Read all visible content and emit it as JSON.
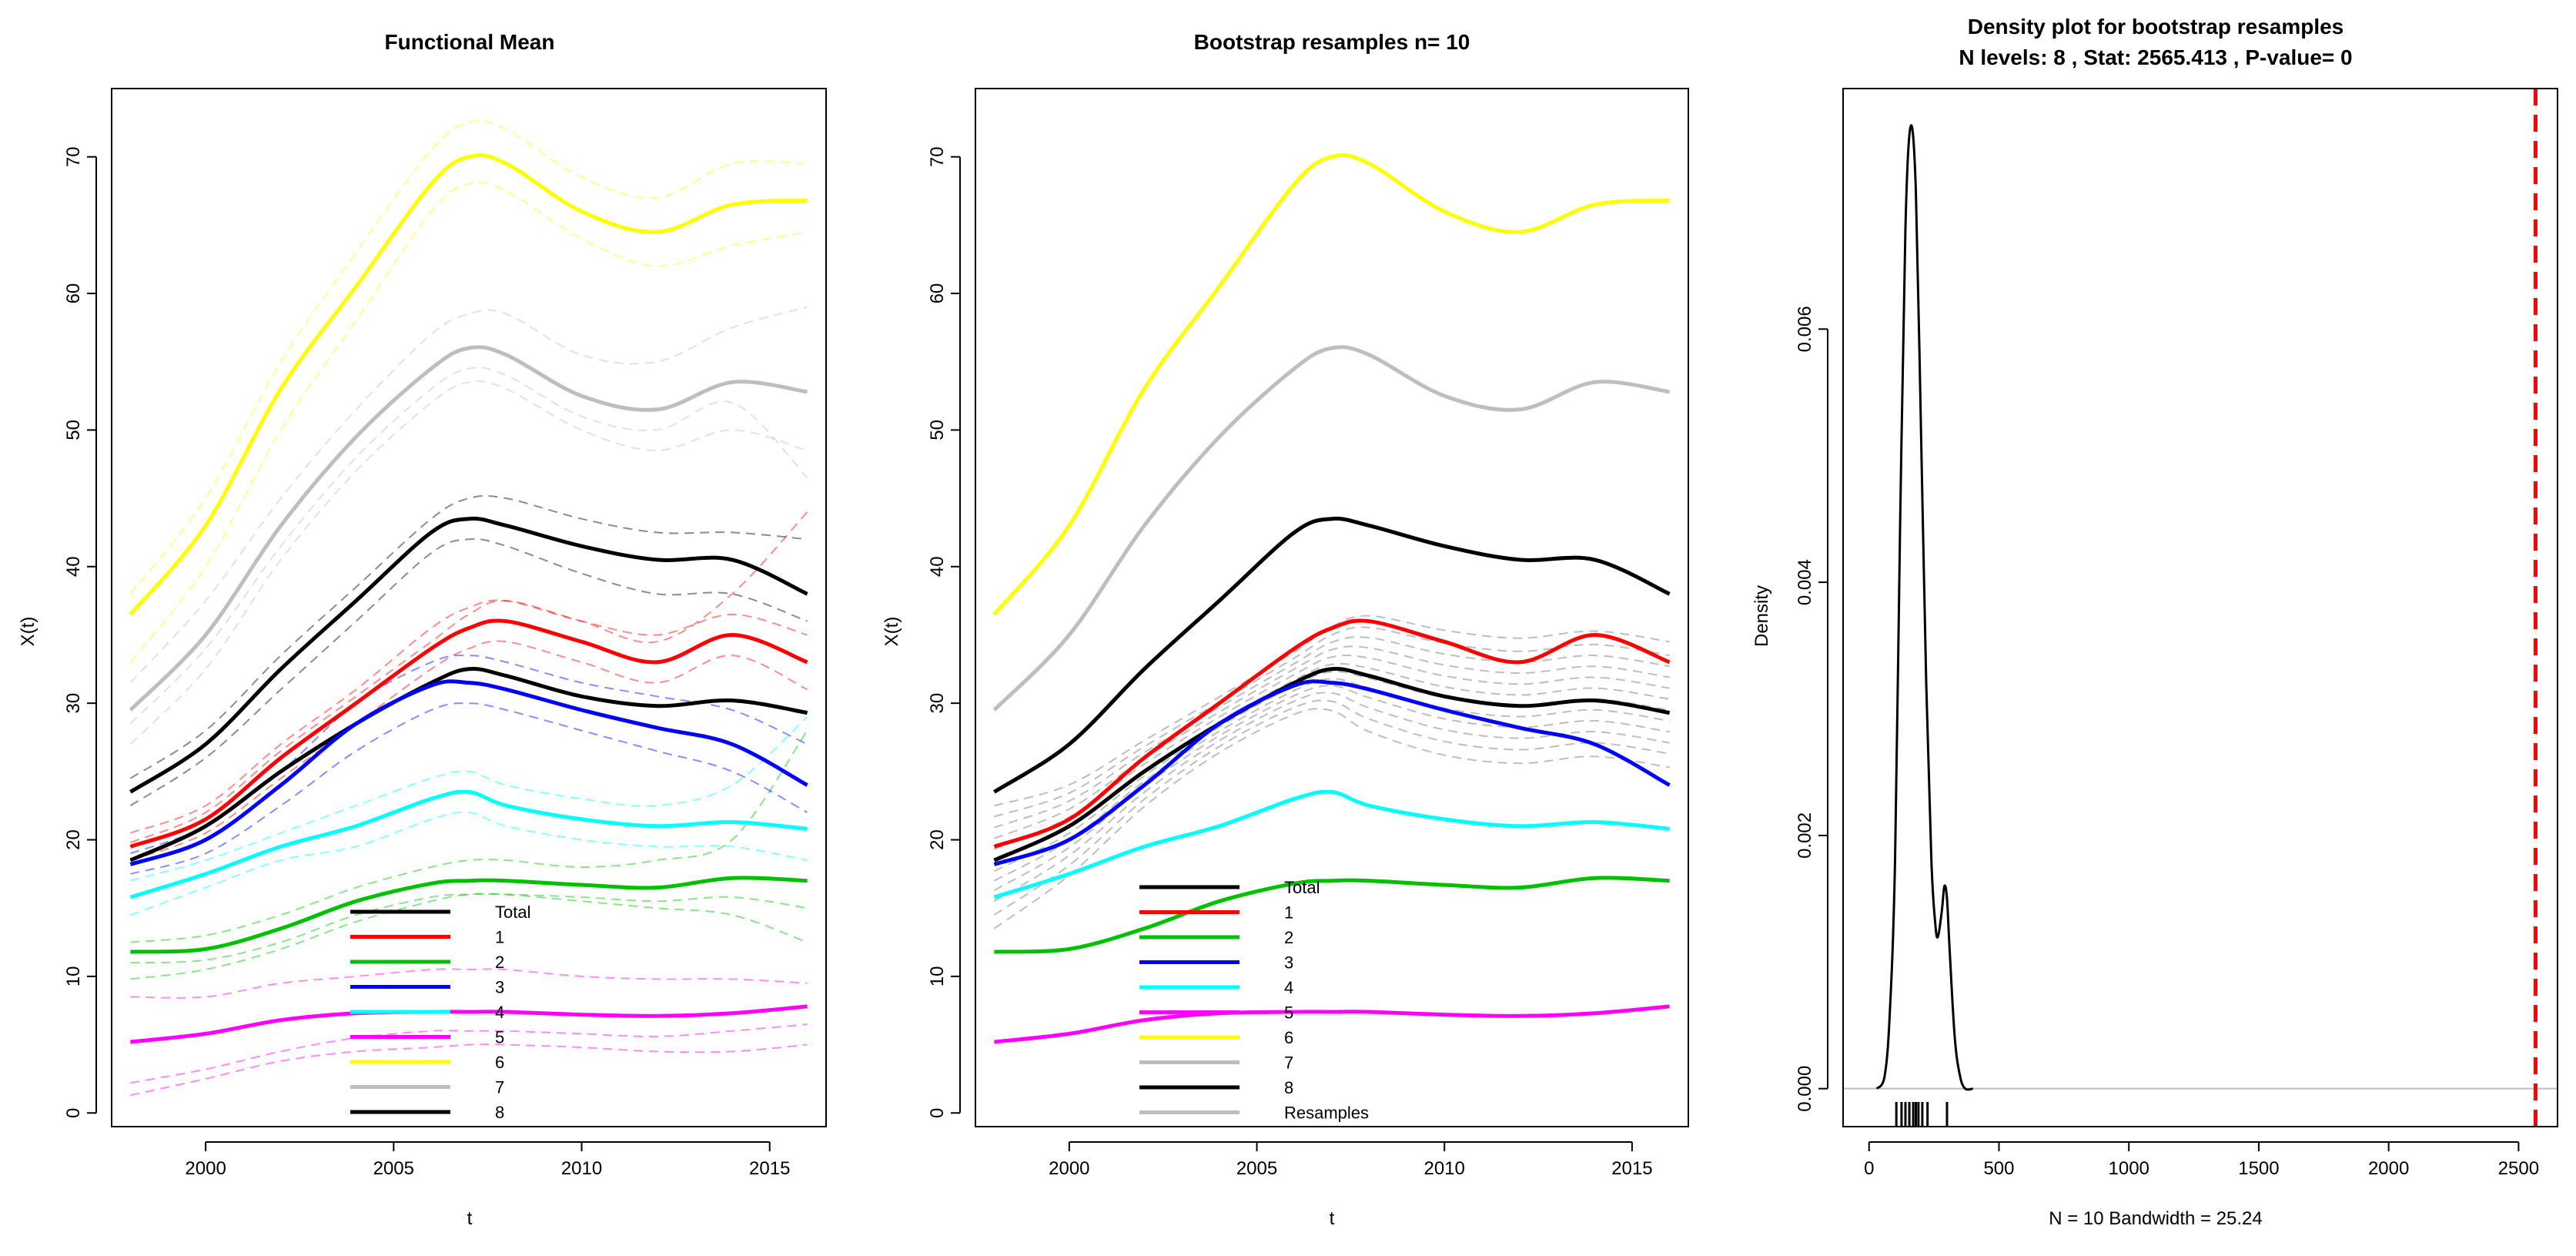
{
  "chart_data": [
    {
      "type": "line",
      "title": "Functional Mean",
      "xlabel": "t",
      "ylabel": "X(t)",
      "xlim": [
        1997.5,
        2016.5
      ],
      "ylim": [
        -1,
        75
      ],
      "xticks": [
        2000,
        2005,
        2010,
        2015
      ],
      "yticks": [
        0,
        10,
        20,
        30,
        40,
        50,
        60,
        70
      ],
      "legend": {
        "position": "bottom-center",
        "entries": [
          "Total",
          "1",
          "2",
          "3",
          "4",
          "5",
          "6",
          "7",
          "8"
        ]
      },
      "series": [
        {
          "name": "Total",
          "color": "#000000",
          "x": [
            1998,
            2000,
            2002,
            2004,
            2006,
            2007,
            2008,
            2010,
            2012,
            2014,
            2016
          ],
          "values": [
            18.5,
            21,
            25,
            28.5,
            31.5,
            32.5,
            32,
            30.5,
            29.8,
            30.2,
            29.3
          ]
        },
        {
          "name": "1",
          "color": "#ff0000",
          "x": [
            1998,
            2000,
            2002,
            2004,
            2006,
            2007,
            2008,
            2010,
            2012,
            2014,
            2016
          ],
          "values": [
            19.5,
            21.5,
            26,
            30,
            34,
            35.5,
            36,
            34.5,
            33,
            35,
            33
          ]
        },
        {
          "name": "2",
          "color": "#00c000",
          "x": [
            1998,
            2000,
            2002,
            2004,
            2006,
            2007,
            2008,
            2010,
            2012,
            2014,
            2016
          ],
          "values": [
            11.8,
            12,
            13.5,
            15.5,
            16.8,
            17,
            17,
            16.7,
            16.5,
            17.2,
            17
          ]
        },
        {
          "name": "3",
          "color": "#0000ff",
          "x": [
            1998,
            2000,
            2002,
            2004,
            2006,
            2007,
            2008,
            2010,
            2012,
            2014,
            2016
          ],
          "values": [
            18.2,
            20,
            24,
            28.5,
            31.3,
            31.5,
            31,
            29.5,
            28.2,
            27,
            24
          ]
        },
        {
          "name": "4",
          "color": "#00ffff",
          "x": [
            1998,
            2000,
            2002,
            2004,
            2006,
            2007,
            2008,
            2010,
            2012,
            2014,
            2016
          ],
          "values": [
            15.8,
            17.5,
            19.5,
            21,
            23,
            23.5,
            22.5,
            21.5,
            21,
            21.3,
            20.8
          ]
        },
        {
          "name": "5",
          "color": "#ff00ff",
          "x": [
            1998,
            2000,
            2002,
            2004,
            2006,
            2007,
            2008,
            2010,
            2012,
            2014,
            2016
          ],
          "values": [
            5.2,
            5.8,
            6.8,
            7.3,
            7.4,
            7.4,
            7.4,
            7.2,
            7.1,
            7.3,
            7.8
          ]
        },
        {
          "name": "6",
          "color": "#ffff00",
          "x": [
            1998,
            2000,
            2002,
            2004,
            2006,
            2007,
            2008,
            2010,
            2012,
            2014,
            2016
          ],
          "values": [
            36.5,
            43,
            53,
            60.5,
            68,
            70,
            69.5,
            66,
            64.5,
            66.5,
            66.8
          ]
        },
        {
          "name": "7",
          "color": "#bebebe",
          "x": [
            1998,
            2000,
            2002,
            2004,
            2006,
            2007,
            2008,
            2010,
            2012,
            2014,
            2016
          ],
          "values": [
            29.5,
            35,
            43,
            49.5,
            54.5,
            56,
            55.5,
            52.5,
            51.5,
            53.5,
            52.8
          ]
        },
        {
          "name": "8",
          "color": "#000000",
          "x": [
            1998,
            2000,
            2002,
            2004,
            2006,
            2007,
            2008,
            2010,
            2012,
            2014,
            2016
          ],
          "values": [
            23.5,
            27,
            32.5,
            37.5,
            42.5,
            43.5,
            43,
            41.5,
            40.5,
            40.5,
            38
          ]
        }
      ],
      "individual_curves": [
        {
          "group": "1",
          "color": "#ff0000",
          "values": [
            20.5,
            22.5,
            27,
            31,
            35.5,
            37,
            37.5,
            36,
            35,
            36.5,
            35
          ]
        },
        {
          "group": "1",
          "color": "#ff0000",
          "values": [
            18.5,
            20.5,
            24.5,
            28.5,
            32.5,
            34,
            34.5,
            33,
            31.5,
            33.5,
            31
          ]
        },
        {
          "group": "1",
          "color": "#ff0000",
          "values": [
            19.8,
            22,
            26.5,
            30.5,
            34.5,
            36.5,
            37.5,
            36,
            34.5,
            38,
            44
          ]
        },
        {
          "group": "2",
          "color": "#00c000",
          "values": [
            12.5,
            13,
            14.5,
            16.5,
            18,
            18.5,
            18.5,
            18,
            18.5,
            20,
            28
          ]
        },
        {
          "group": "2",
          "color": "#00c000",
          "values": [
            11,
            11.2,
            12.5,
            14.5,
            15.8,
            16,
            16,
            15.5,
            15,
            14.5,
            12.5
          ]
        },
        {
          "group": "2",
          "color": "#00c000",
          "values": [
            9.8,
            10.5,
            12,
            14,
            15.5,
            16,
            16,
            15.8,
            15.5,
            15.8,
            15
          ]
        },
        {
          "group": "3",
          "color": "#0000ff",
          "values": [
            19,
            21,
            25,
            30,
            33,
            33.5,
            33,
            31.5,
            30.5,
            29.5,
            27
          ]
        },
        {
          "group": "3",
          "color": "#0000ff",
          "values": [
            17.5,
            19,
            22.5,
            26.5,
            29.5,
            30,
            29.5,
            28,
            26.5,
            25,
            22
          ]
        },
        {
          "group": "4",
          "color": "#00ffff",
          "values": [
            17,
            18.5,
            20.5,
            22.5,
            24.5,
            25,
            24,
            23,
            22.5,
            24,
            29
          ]
        },
        {
          "group": "4",
          "color": "#00ffff",
          "values": [
            14.5,
            16.5,
            18.5,
            19.5,
            21.5,
            22,
            21,
            20,
            19.5,
            19.5,
            18.5
          ]
        },
        {
          "group": "5",
          "color": "#ff00ff",
          "values": [
            8.5,
            8.5,
            9.5,
            10,
            10.5,
            10.5,
            10.5,
            10,
            9.8,
            9.8,
            9.5
          ]
        },
        {
          "group": "5",
          "color": "#ff00ff",
          "values": [
            1.3,
            2.5,
            3.8,
            4.5,
            4.8,
            5,
            5,
            4.8,
            4.5,
            4.5,
            5
          ]
        },
        {
          "group": "5",
          "color": "#ff00ff",
          "values": [
            2.2,
            3.2,
            4.5,
            5.5,
            6,
            6,
            6,
            5.8,
            5.6,
            6,
            6.5
          ]
        },
        {
          "group": "6",
          "color": "#ffff00",
          "values": [
            33,
            40,
            50,
            58,
            66,
            68,
            67.5,
            64,
            62,
            63.5,
            64.5
          ]
        },
        {
          "group": "6",
          "color": "#ffff00",
          "values": [
            38,
            45,
            55,
            63,
            70.5,
            72.5,
            72,
            68.5,
            67,
            69.5,
            69.5
          ]
        },
        {
          "group": "7",
          "color": "#bebebe",
          "values": [
            27,
            32.5,
            40.5,
            47,
            52,
            53.5,
            53,
            50,
            48.5,
            50,
            48.5
          ]
        },
        {
          "group": "7",
          "color": "#bebebe",
          "values": [
            31.5,
            37.5,
            45,
            51.5,
            57,
            58.5,
            58.5,
            55.5,
            55,
            57.5,
            59
          ]
        },
        {
          "group": "7",
          "color": "#bebebe",
          "values": [
            28.5,
            34,
            41.5,
            48,
            53,
            54.5,
            54,
            51,
            50,
            52,
            46.5
          ]
        },
        {
          "group": "8",
          "color": "#000000",
          "values": [
            24.5,
            28,
            33.5,
            38.5,
            43.5,
            45,
            45,
            43.5,
            42.5,
            42.5,
            42
          ]
        },
        {
          "group": "8",
          "color": "#000000",
          "values": [
            22.5,
            26,
            31,
            36,
            41,
            42,
            41.5,
            39.5,
            38,
            38,
            36
          ]
        }
      ]
    },
    {
      "type": "line",
      "title": "Bootstrap resamples n= 10",
      "xlabel": "t",
      "ylabel": "X(t)",
      "xlim": [
        1997.5,
        2016.5
      ],
      "ylim": [
        -1,
        75
      ],
      "xticks": [
        2000,
        2005,
        2010,
        2015
      ],
      "yticks": [
        0,
        10,
        20,
        30,
        40,
        50,
        60,
        70
      ],
      "legend": {
        "position": "bottom-center",
        "entries": [
          "Total",
          "1",
          "2",
          "3",
          "4",
          "5",
          "6",
          "7",
          "8",
          "Resamples"
        ]
      },
      "resamples_color": "#bebebe",
      "resample_offsets": [
        -5,
        -4,
        -3,
        -2.2,
        -1.5,
        -0.8,
        0,
        0.8,
        1.6,
        2.4,
        3.2,
        4
      ],
      "resample_end_spread": [
        -4,
        -3,
        -2.2,
        -1.4,
        -0.6,
        0.2,
        1,
        1.8,
        2.6,
        3.4,
        4.2,
        5.2
      ]
    },
    {
      "type": "density",
      "title": "Density plot for bootstrap resamples",
      "subtitle": "N levels: 8 , Stat: 2565.413 , P-value= 0",
      "xlabel": "N = 10   Bandwidth = 25.24",
      "ylabel": "Density",
      "xlim": [
        -100,
        2650
      ],
      "ylim": [
        -0.0003,
        0.0079
      ],
      "xticks": [
        0,
        500,
        1000,
        1500,
        2000,
        2500
      ],
      "yticks": [
        0,
        0.002,
        0.004,
        0.006
      ],
      "ytick_labels": [
        "0.000",
        "0.002",
        "0.004",
        "0.006"
      ],
      "x": [
        30,
        60,
        80,
        100,
        120,
        140,
        160,
        180,
        200,
        220,
        240,
        255,
        265,
        280,
        290,
        300,
        310,
        330,
        350,
        370,
        400
      ],
      "values": [
        0,
        0.0001,
        0.0006,
        0.0018,
        0.0045,
        0.0068,
        0.0076,
        0.0071,
        0.0052,
        0.0032,
        0.0018,
        0.0013,
        0.0012,
        0.0014,
        0.0016,
        0.0015,
        0.0011,
        0.0004,
        0.0001,
        0,
        0
      ],
      "rug": [
        105,
        125,
        140,
        155,
        170,
        180,
        190,
        205,
        225,
        300
      ],
      "observed_stat": 2565.413,
      "observed_line_color": "#ff0000"
    }
  ]
}
